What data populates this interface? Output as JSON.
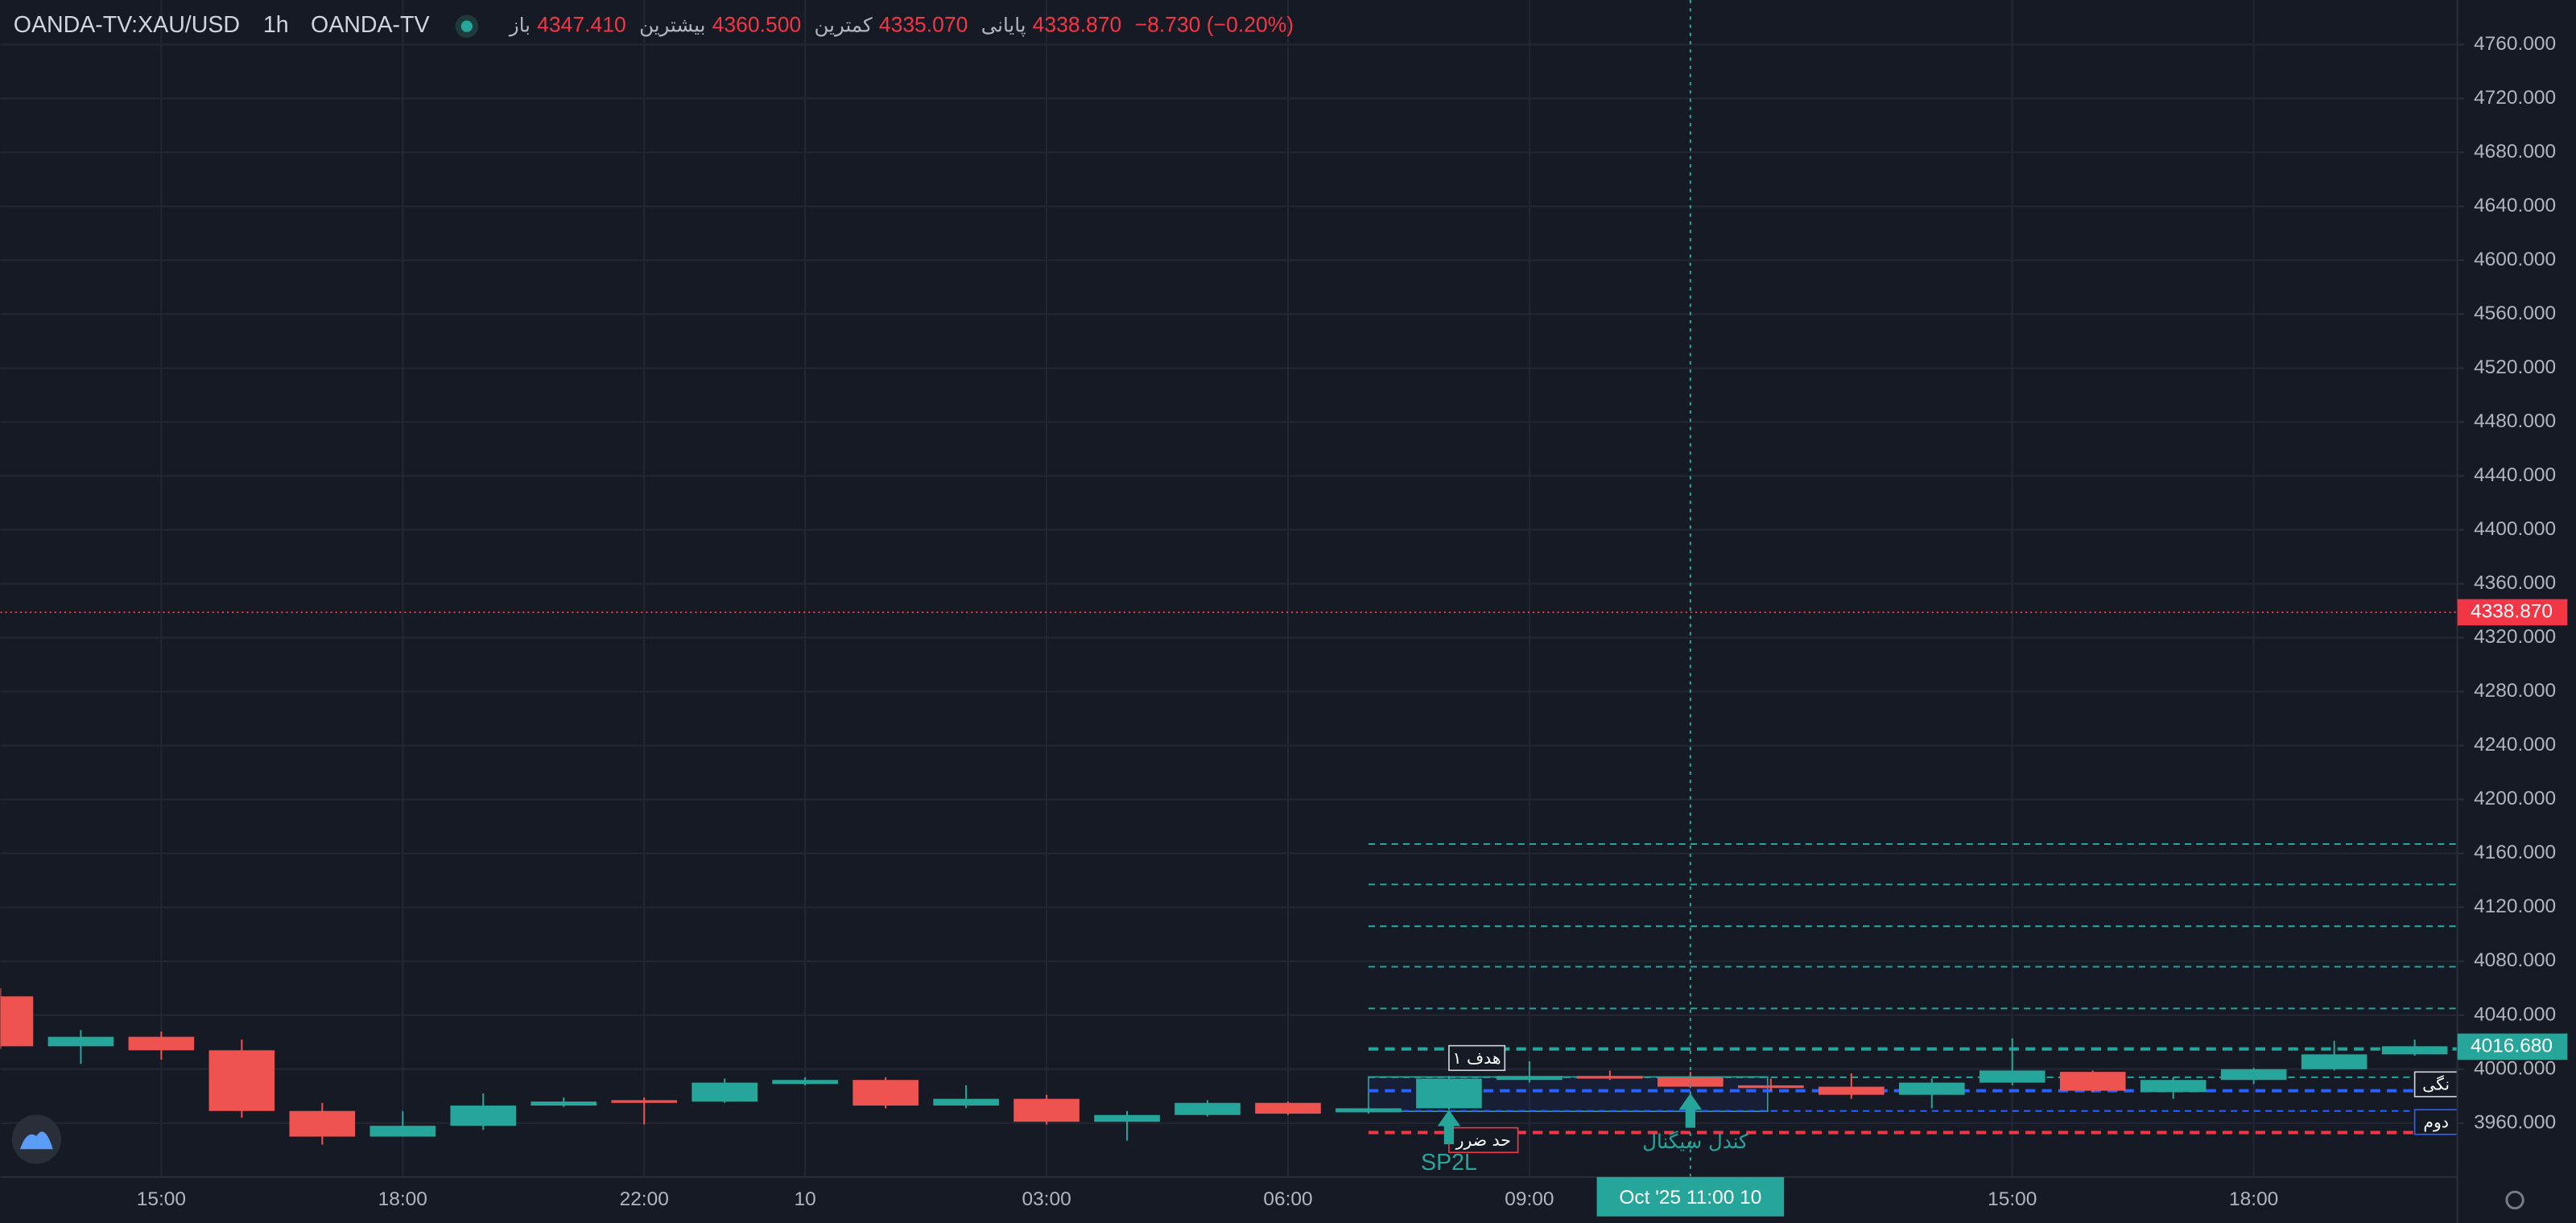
{
  "header": {
    "symbol": "OANDA-TV:XAU/USD",
    "interval": "1h",
    "source": "OANDA-TV",
    "fields": [
      {
        "label": "باز",
        "value": "4347.410"
      },
      {
        "label": "بیشترین",
        "value": "4360.500"
      },
      {
        "label": "کمترین",
        "value": "4335.070"
      },
      {
        "label": "پایانی",
        "value": "4338.870"
      }
    ],
    "change": "−8.730 (−0.20%)"
  },
  "chart_data": {
    "type": "candlestick",
    "categories": [
      null,
      null,
      "15:00",
      null,
      null,
      "18:00",
      null,
      null,
      "22:00",
      null,
      "10",
      null,
      null,
      "03:00",
      null,
      null,
      "06:00",
      null,
      null,
      "09:00",
      null,
      null,
      null,
      null,
      null,
      "15:00",
      null,
      null,
      "18:00",
      null,
      null
    ],
    "open": [
      4054,
      4017,
      4024,
      4014,
      3969,
      3950,
      3958,
      3973,
      3977,
      3976,
      3989,
      3992,
      3973,
      3978,
      3961,
      3966,
      3975,
      3968,
      3971,
      3992,
      3995,
      3994,
      3988,
      3987,
      3981,
      3990,
      3998,
      3983,
      3992,
      4000,
      4011
    ],
    "high": [
      4060,
      4029,
      4028,
      4022,
      3975,
      3969,
      3982,
      3979,
      3979,
      3993,
      3994,
      3994,
      3988,
      3981,
      3969,
      3977,
      3976,
      3972,
      3995,
      4006,
      3999,
      3998,
      3993,
      3997,
      3993,
      4023,
      3999,
      3994,
      4001,
      4021,
      4022
    ],
    "low": [
      4015,
      4004,
      4007,
      3964,
      3944,
      3950,
      3955,
      3972,
      3959,
      3975,
      3988,
      3971,
      3971,
      3959,
      3947,
      3965,
      3966,
      3967,
      3970,
      3990,
      3992,
      3986,
      3984,
      3978,
      3971,
      3988,
      3983,
      3978,
      3989,
      3999,
      4010
    ],
    "close": [
      4017,
      4024,
      4014,
      3969,
      3950,
      3958,
      3973,
      3976,
      3975,
      3990,
      3992,
      3973,
      3978,
      3961,
      3966,
      3975,
      3967,
      3971,
      3993,
      3995,
      3993,
      3987,
      3986,
      3981,
      3990,
      3999,
      3984,
      3992,
      4000,
      4011,
      4017
    ],
    "up_color": "#26a69a",
    "down_color": "#ef5350",
    "ylim": [
      3920,
      4793
    ],
    "yticks": [
      {
        "value": 3960,
        "label": "3960.000"
      },
      {
        "value": 4000,
        "label": "4000.000"
      },
      {
        "value": 4040,
        "label": "4040.000"
      },
      {
        "value": 4080,
        "label": "4080.000"
      },
      {
        "value": 4120,
        "label": "4120.000"
      },
      {
        "value": 4160,
        "label": "4160.000"
      },
      {
        "value": 4200,
        "label": "4200.000"
      },
      {
        "value": 4240,
        "label": "4240.000"
      },
      {
        "value": 4280,
        "label": "4280.000"
      },
      {
        "value": 4320,
        "label": "4320.000"
      },
      {
        "value": 4360,
        "label": "4360.000"
      },
      {
        "value": 4400,
        "label": "4400.000"
      },
      {
        "value": 4440,
        "label": "4440.000"
      },
      {
        "value": 4480,
        "label": "4480.000"
      },
      {
        "value": 4520,
        "label": "4520.000"
      },
      {
        "value": 4560,
        "label": "4560.000"
      },
      {
        "value": 4600,
        "label": "4600.000"
      },
      {
        "value": 4640,
        "label": "4640.000"
      },
      {
        "value": 4680,
        "label": "4680.000"
      },
      {
        "value": 4720,
        "label": "4720.000"
      },
      {
        "value": 4760,
        "label": "4760.000"
      }
    ],
    "grid": true,
    "last_price": {
      "value": 4338.87,
      "label": "4338.870",
      "color": "#f23645"
    },
    "current_price": {
      "value": 4016.68,
      "label": "4016.680",
      "color": "#26a69a"
    },
    "levels": [
      {
        "value": 4167,
        "color": "#26a69a",
        "width": 1
      },
      {
        "value": 4137,
        "color": "#26a69a",
        "width": 1
      },
      {
        "value": 4106,
        "color": "#26a69a",
        "width": 1
      },
      {
        "value": 4076,
        "color": "#26a69a",
        "width": 1
      },
      {
        "value": 4045,
        "color": "#26a69a",
        "width": 1
      },
      {
        "value": 4015,
        "color": "#26a69a",
        "width": 2
      },
      {
        "value": 3994,
        "color": "#26a69a",
        "width": 1
      },
      {
        "value": 3984,
        "color": "#2962ff",
        "width": 2
      },
      {
        "value": 3969,
        "color": "#2962ff",
        "width": 1
      },
      {
        "value": 3953,
        "color": "#f23645",
        "width": 2
      }
    ],
    "annotations": {
      "target1": "هدف ۱",
      "stop_loss": "حد ضرر",
      "signal": "SP2L",
      "signal_candle": "کندل سیگنال",
      "right_1": "نگی",
      "right_2": "دوم"
    },
    "crosshair_label": "Oct '25   11:00 10"
  }
}
